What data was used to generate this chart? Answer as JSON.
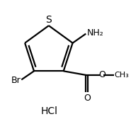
{
  "background_color": "#ffffff",
  "line_color": "#000000",
  "line_width": 1.6,
  "text_color": "#000000",
  "font_size_s": 10,
  "font_size_atoms": 9,
  "font_size_hcl": 10,
  "figsize": [
    1.85,
    1.75
  ],
  "dpi": 100,
  "hcl_text": "HCl",
  "s_label": "S",
  "nh2_label": "NH₂",
  "br_label": "Br",
  "o_carbonyl": "O",
  "o_ester": "O",
  "me_label": "CH₃"
}
